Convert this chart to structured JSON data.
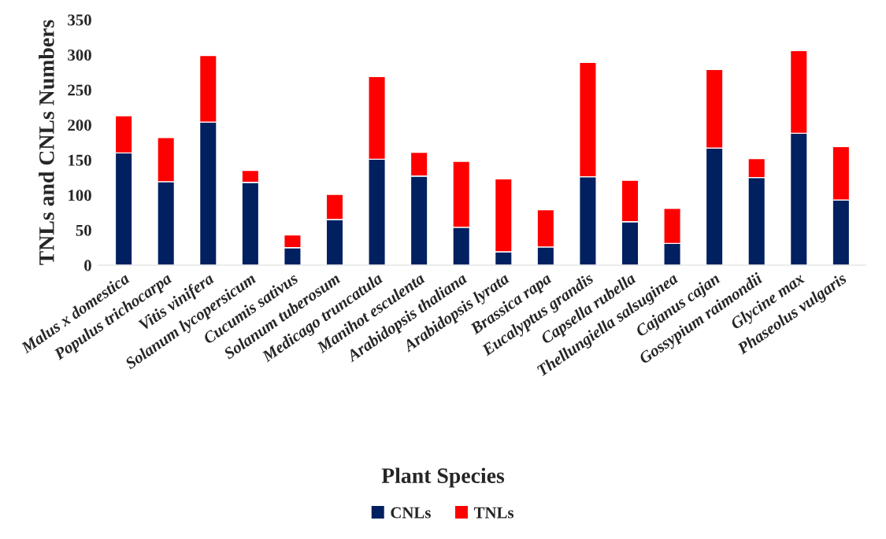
{
  "chart_data": {
    "type": "bar",
    "stacked": true,
    "xlabel": "Plant Species",
    "ylabel": "TNLs and CNLs Numbers",
    "categories": [
      "Malus x domestica",
      "Populus trichocarpa",
      "Vitis vinifera",
      "Solanum lycopersicum",
      "Cucumis sativus",
      "Solanum tuberosum",
      "Medicago truncatula",
      "Manihot esculenta",
      "Arabidopsis thaliana",
      "Arabidopsis lyrata",
      "Brassica rapa",
      "Eucalyptus grandis",
      "Capsella rubella",
      "Thellungiella salsuginea",
      "Cajanus cajan",
      "Gossypium raimondii",
      "Glycine max",
      "Phaseolus vulgaris"
    ],
    "series": [
      {
        "name": "CNLs",
        "color": "#002060",
        "values": [
          160,
          119,
          204,
          118,
          25,
          65,
          151,
          127,
          54,
          19,
          26,
          126,
          62,
          31,
          167,
          125,
          188,
          93
        ]
      },
      {
        "name": "TNLs",
        "color": "#ff0000",
        "values": [
          53,
          63,
          95,
          17,
          18,
          36,
          118,
          34,
          94,
          104,
          53,
          163,
          59,
          50,
          112,
          27,
          118,
          76
        ]
      }
    ],
    "ylim": [
      0,
      350
    ],
    "yticks": [
      0,
      50,
      100,
      150,
      200,
      250,
      300,
      350
    ],
    "grid": false,
    "legend": "bottom"
  }
}
